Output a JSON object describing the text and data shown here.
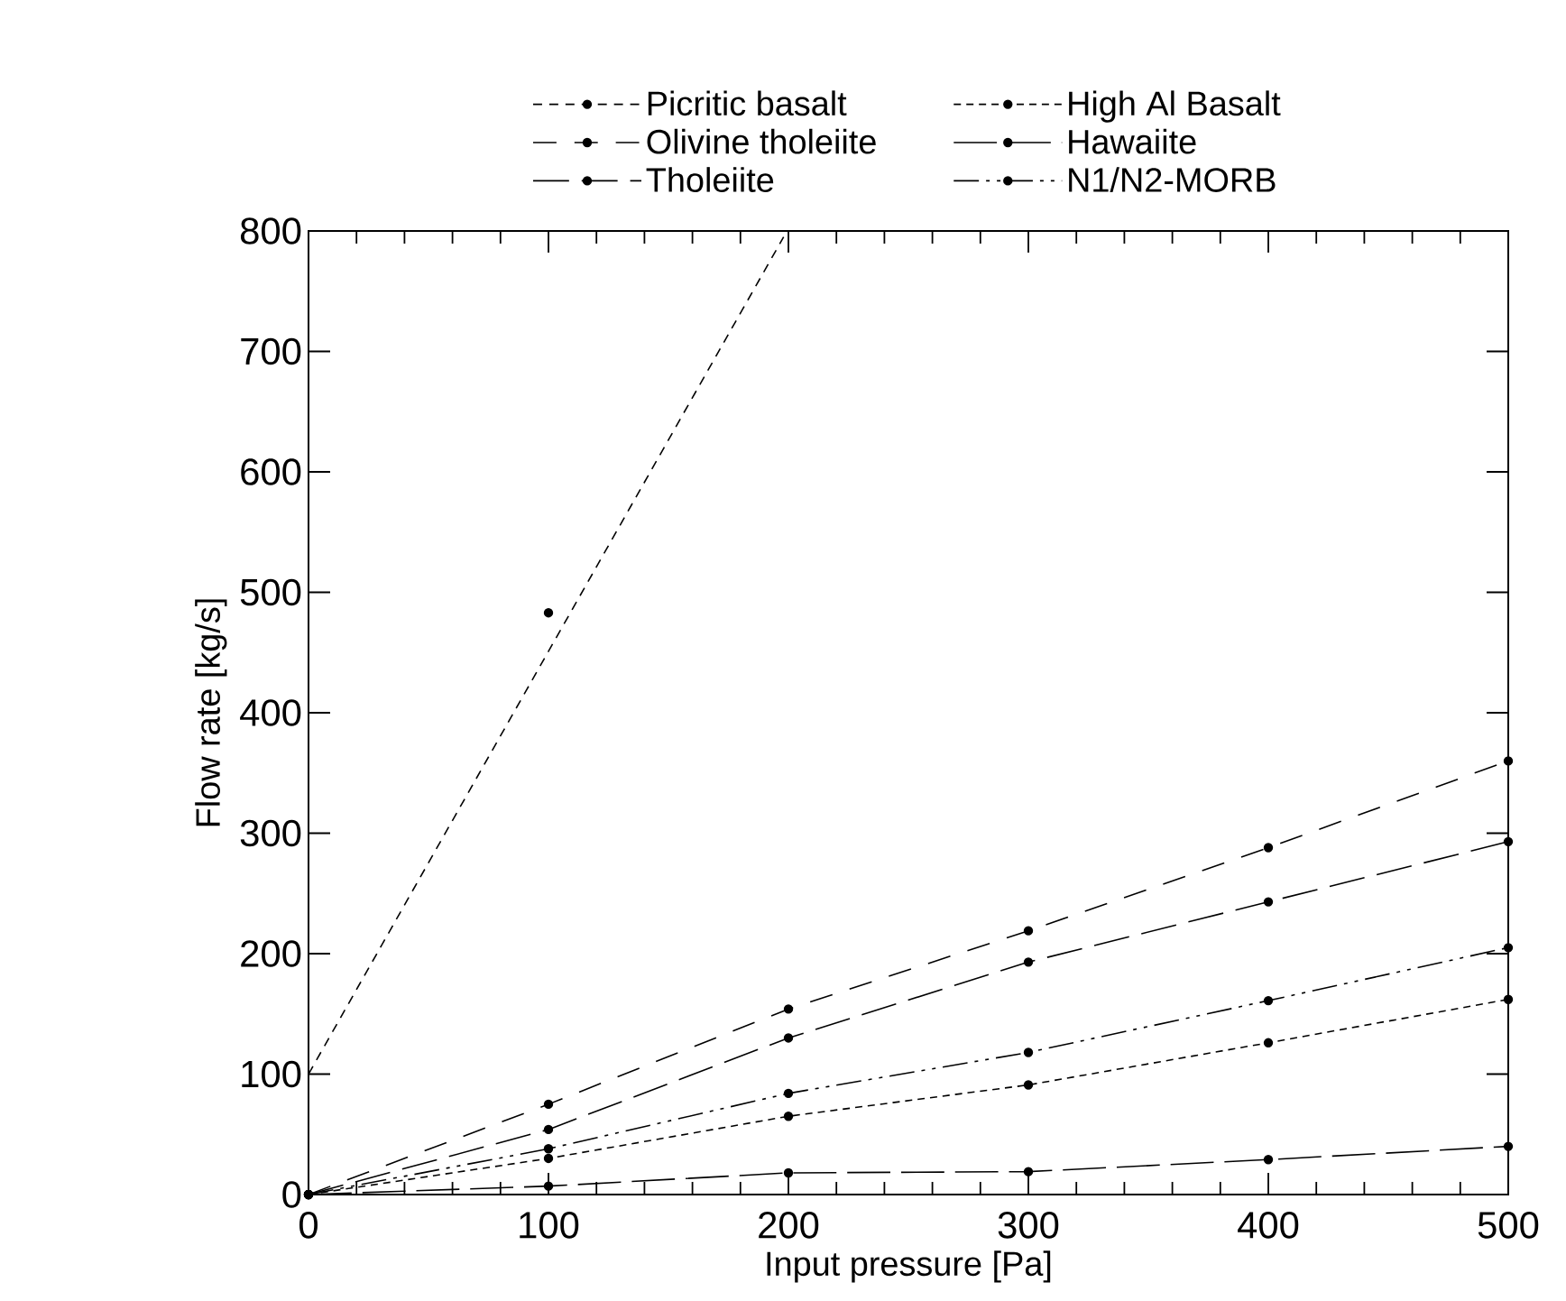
{
  "chart_data": {
    "type": "line",
    "xlabel": "Input pressure [Pa]",
    "ylabel": "Flow rate [kg/s]",
    "xlim": [
      0,
      500
    ],
    "ylim": [
      0,
      800
    ],
    "xticks": [
      0,
      100,
      200,
      300,
      400,
      500
    ],
    "yticks": [
      0,
      100,
      200,
      300,
      400,
      500,
      600,
      700,
      800
    ],
    "grid": false,
    "legend": "top",
    "marker": "circle",
    "line_style": "dashed",
    "series": [
      {
        "name": "Picritic basalt",
        "type": "scatter",
        "color": "#000000",
        "x": [
          100
        ],
        "values": [
          483
        ]
      },
      {
        "name": "Olivine tholeiite",
        "color": "#000000",
        "x": [
          0,
          100,
          200,
          300,
          400,
          500
        ],
        "values": [
          0,
          75,
          154,
          219,
          288,
          360
        ]
      },
      {
        "name": "Tholeiite",
        "color": "#000000",
        "x": [
          0,
          100,
          200,
          300,
          400,
          500
        ],
        "values": [
          0,
          54,
          130,
          193,
          243,
          293
        ]
      },
      {
        "name": "High Al Basalt",
        "color": "#000000",
        "x": [
          0,
          100,
          200,
          300,
          400,
          500
        ],
        "values": [
          0,
          30,
          65,
          91,
          126,
          162
        ]
      },
      {
        "name": "Hawaiite",
        "color": "#000000",
        "x": [
          0,
          100,
          200,
          300,
          400,
          500
        ],
        "values": [
          0,
          7,
          18,
          19,
          29,
          40
        ]
      },
      {
        "name": "N1/N2-MORB",
        "color": "#000000",
        "x": [
          0,
          100,
          200,
          300,
          400,
          500
        ],
        "values": [
          0,
          38,
          84,
          118,
          161,
          205
        ]
      },
      {
        "type": "line",
        "marker": "none",
        "color": "#000000",
        "x": [
          0,
          198
        ],
        "values": [
          100,
          795
        ]
      }
    ]
  }
}
